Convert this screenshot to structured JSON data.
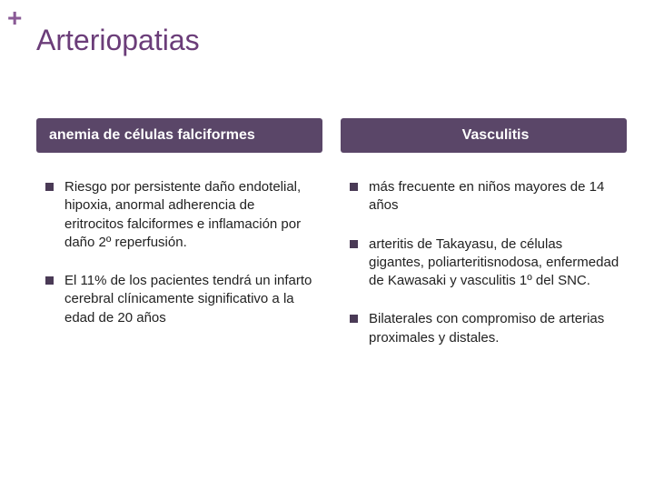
{
  "colors": {
    "accent": "#6b3d79",
    "plus": "#8a5a96",
    "header_bg": "#5a4668",
    "bullet": "#4a3a56",
    "text": "#222222"
  },
  "plus_symbol": "+",
  "title": "Arteriopatias",
  "left": {
    "header": "anemia de células falciformes",
    "items": [
      "Riesgo por persistente daño endotelial, hipoxia, anormal adherencia de eritrocitos falciformes e inflamación por daño 2º reperfusión.",
      "El 11% de los pacientes tendrá un infarto cerebral clínicamente significativo a la edad de 20 años"
    ]
  },
  "right": {
    "header": "Vasculitis",
    "items": [
      "más frecuente en niños mayores de 14 años",
      "arteritis de Takayasu, de células gigantes, poliarteritisnodosa, enfermedad de Kawasaki y vasculitis 1º del SNC.",
      " Bilaterales con compromiso de arterias proximales y distales."
    ]
  }
}
